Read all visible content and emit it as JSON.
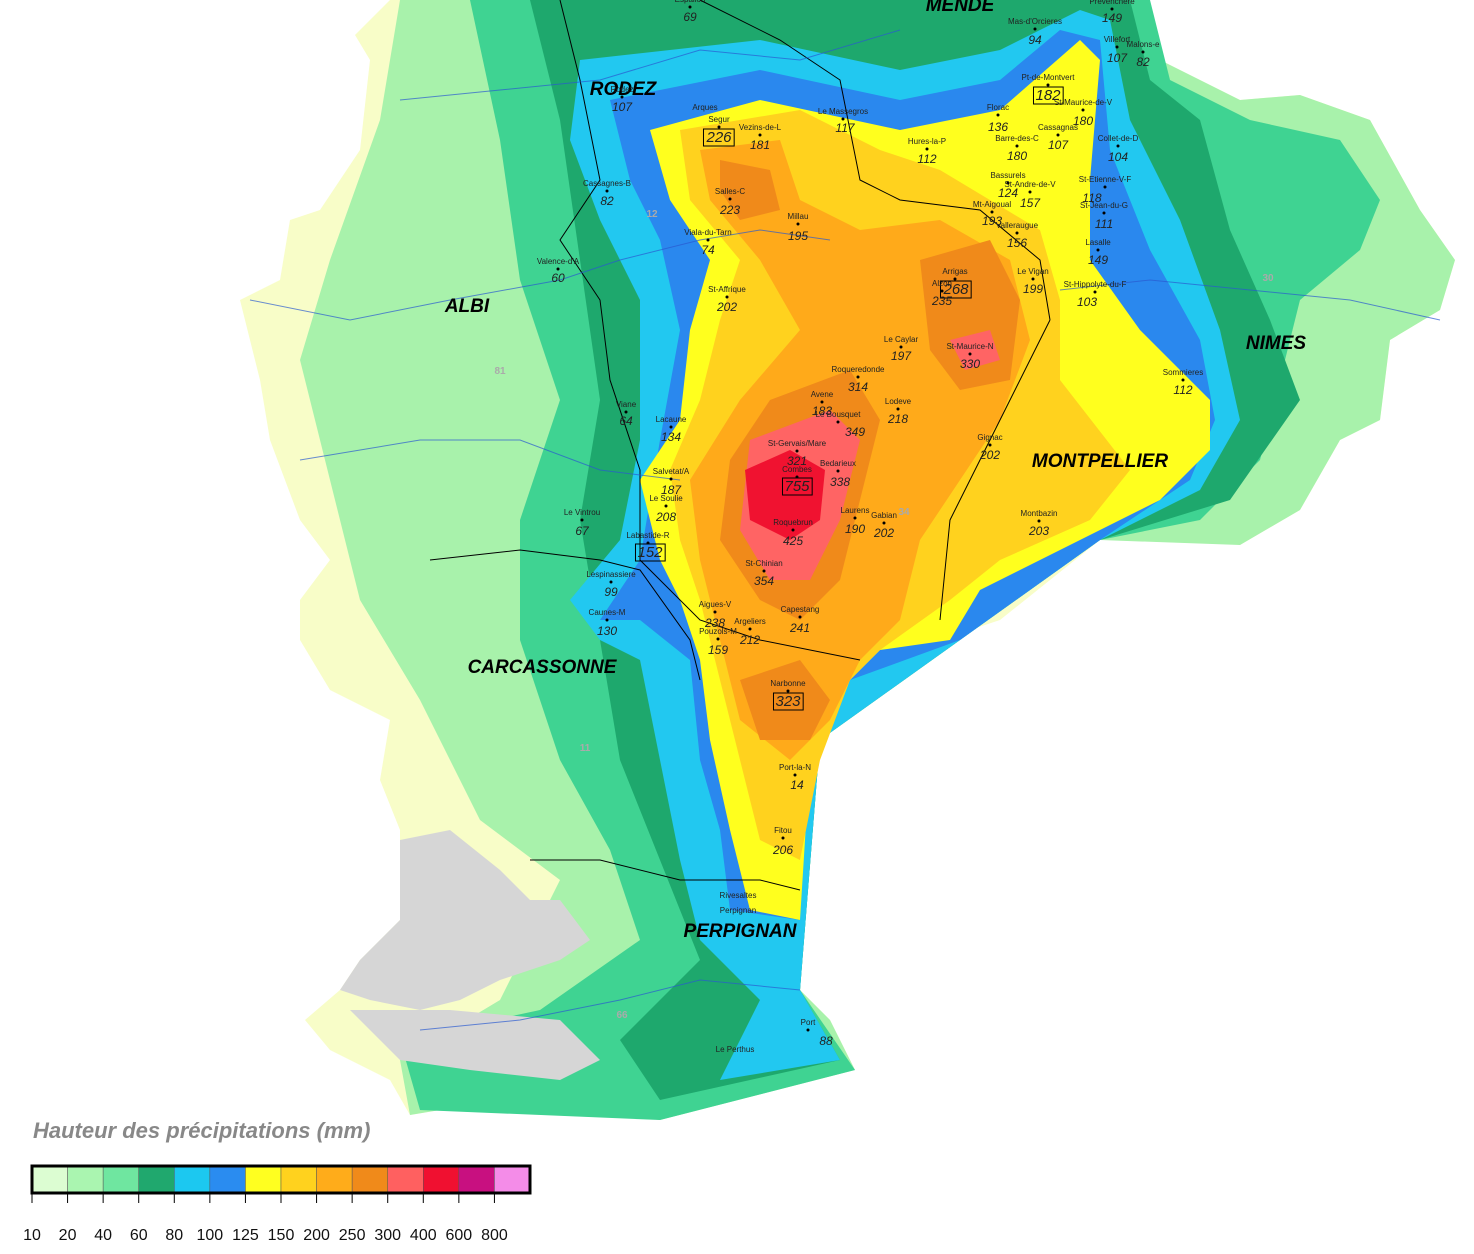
{
  "map": {
    "cities": [
      "MENDE",
      "RODEZ",
      "ALBI",
      "NIMES",
      "MONTPELLIER",
      "CARCASSONNE",
      "PERPIGNAN"
    ],
    "departments": [
      "12",
      "81",
      "30",
      "34",
      "11",
      "66"
    ],
    "places": [
      "Arques",
      "Rivesaltes",
      "Perpignan",
      "Le Perthus"
    ],
    "stations": [
      {
        "name": "Espalion",
        "value": 69
      },
      {
        "name": "Mas-d'Orcieres",
        "value": 94
      },
      {
        "name": "Prevenchere",
        "value": 149
      },
      {
        "name": "Villefort",
        "value": 107
      },
      {
        "name": "Malons-e",
        "value": 82
      },
      {
        "name": "Pt-de-Montvert",
        "value": 182,
        "boxed": true
      },
      {
        "name": "Rodez",
        "value": 107
      },
      {
        "name": "Segur",
        "value": 226,
        "boxed": true
      },
      {
        "name": "Vezins-de-L",
        "value": 181
      },
      {
        "name": "Le Massegros",
        "value": 117
      },
      {
        "name": "Florac",
        "value": 136
      },
      {
        "name": "St-Maurice-de-V",
        "value": 180
      },
      {
        "name": "Hures-la-P",
        "value": 112
      },
      {
        "name": "Barre-des-C",
        "value": 180
      },
      {
        "name": "Cassagnas",
        "value": 107
      },
      {
        "name": "Collet-de-D",
        "value": 104
      },
      {
        "name": "Cassagnes-B",
        "value": 82
      },
      {
        "name": "Salles-C",
        "value": 223
      },
      {
        "name": "Millau",
        "value": 195
      },
      {
        "name": "Bassurels",
        "value": 124
      },
      {
        "name": "St-Andre-de-V",
        "value": 157
      },
      {
        "name": "St-Etienne-V-F",
        "value": 118
      },
      {
        "name": "Mt-Aigoual",
        "value": 193
      },
      {
        "name": "St-Jean-du-G",
        "value": 111
      },
      {
        "name": "Valleraugue",
        "value": 156
      },
      {
        "name": "Viala-du-Tarn",
        "value": 74
      },
      {
        "name": "Lasalle",
        "value": 149
      },
      {
        "name": "Valence-d'A",
        "value": 60
      },
      {
        "name": "Arrigas",
        "value": 268,
        "boxed": true
      },
      {
        "name": "Le Vigan",
        "value": 199
      },
      {
        "name": "Alzon",
        "value": 235
      },
      {
        "name": "St-Hippolyte-du-F",
        "value": 103
      },
      {
        "name": "St-Affrique",
        "value": 202
      },
      {
        "name": "Le Caylar",
        "value": 197
      },
      {
        "name": "St-Maurice-N",
        "value": 330
      },
      {
        "name": "Roqueredonde",
        "value": 314
      },
      {
        "name": "Sommieres",
        "value": 112
      },
      {
        "name": "Avene",
        "value": 183
      },
      {
        "name": "Lodeve",
        "value": 218
      },
      {
        "name": "Viane",
        "value": 64
      },
      {
        "name": "Le Bousquet",
        "value": 349
      },
      {
        "name": "Lacaune",
        "value": 134
      },
      {
        "name": "St-Gervais/Mare",
        "value": 321
      },
      {
        "name": "Gignac",
        "value": 202
      },
      {
        "name": "Combes",
        "value": 755,
        "boxed": true
      },
      {
        "name": "Bedarieux",
        "value": 338
      },
      {
        "name": "Salvetat/A",
        "value": 187
      },
      {
        "name": "Le Soulie",
        "value": 208
      },
      {
        "name": "Laurens",
        "value": 190
      },
      {
        "name": "Gabian",
        "value": 202
      },
      {
        "name": "Montbazin",
        "value": 203
      },
      {
        "name": "Le Vintrou",
        "value": 67
      },
      {
        "name": "Roquebrun",
        "value": 425
      },
      {
        "name": "Labastide-R",
        "value": 152,
        "boxed": true
      },
      {
        "name": "St-Chinian",
        "value": 354
      },
      {
        "name": "Lespinassiere",
        "value": 99
      },
      {
        "name": "Aigues-V",
        "value": 238
      },
      {
        "name": "Capestang",
        "value": 241
      },
      {
        "name": "Caunes-M",
        "value": 130
      },
      {
        "name": "Argeliers",
        "value": 212
      },
      {
        "name": "Pouzols-M",
        "value": 159
      },
      {
        "name": "Narbonne",
        "value": 323,
        "boxed": true
      },
      {
        "name": "Port-la-N",
        "value": 14
      },
      {
        "name": "Fitou",
        "value": 206
      },
      {
        "name": "Port",
        "value": 88
      }
    ]
  },
  "legend": {
    "title": "Hauteur des précipitations (mm)",
    "ticks": [
      10,
      20,
      40,
      60,
      80,
      100,
      125,
      150,
      200,
      250,
      300,
      400,
      600,
      800
    ],
    "colors": [
      "#dcfdd2",
      "#aaf5b0",
      "#6fe6a0",
      "#20a86e",
      "#1cc8f0",
      "#2a8cf0",
      "#ffff20",
      "#ffd21e",
      "#ffac1a",
      "#f08a1a",
      "#ff6060",
      "#f01030",
      "#c81080",
      "#f48ce8"
    ]
  }
}
